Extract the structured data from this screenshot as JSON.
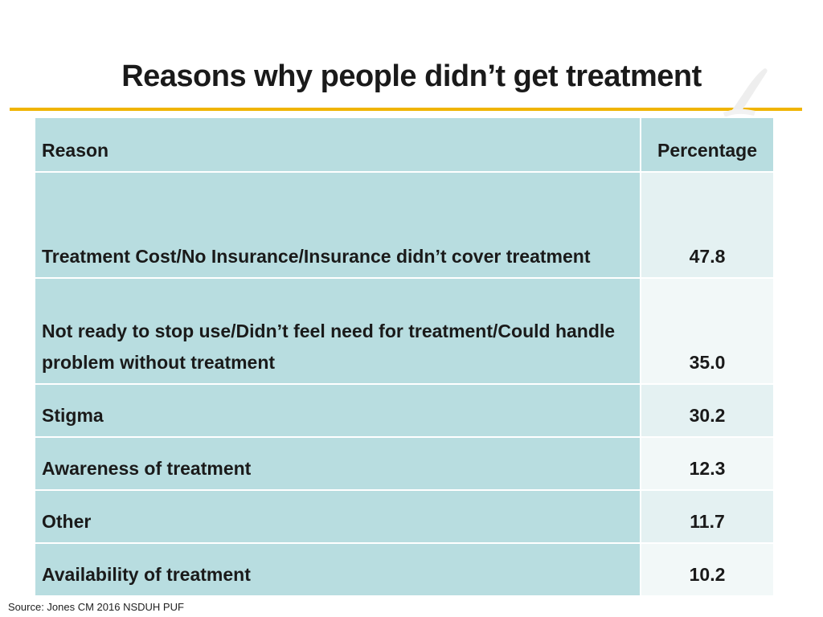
{
  "title": "Reasons why people didn’t get treatment",
  "table": {
    "headers": {
      "reason": "Reason",
      "percentage": "Percentage"
    },
    "rows": [
      {
        "reason": "Treatment Cost/No Insurance/Insurance didn’t cover treatment",
        "percentage": "47.8"
      },
      {
        "reason": "Not ready to stop use/Didn’t feel need for treatment/Could handle problem without treatment",
        "percentage": "35.0"
      },
      {
        "reason": "Stigma",
        "percentage": "30.2"
      },
      {
        "reason": "Awareness of treatment",
        "percentage": "12.3"
      },
      {
        "reason": "Other",
        "percentage": "11.7"
      },
      {
        "reason": "Availability of treatment",
        "percentage": "10.2"
      }
    ]
  },
  "source": "Source: Jones CM 2016 NSDUH PUF",
  "colors": {
    "accent_rule": "#f0b400",
    "header_cell": "#b8dde0",
    "value_cell": "#e4f1f2"
  }
}
